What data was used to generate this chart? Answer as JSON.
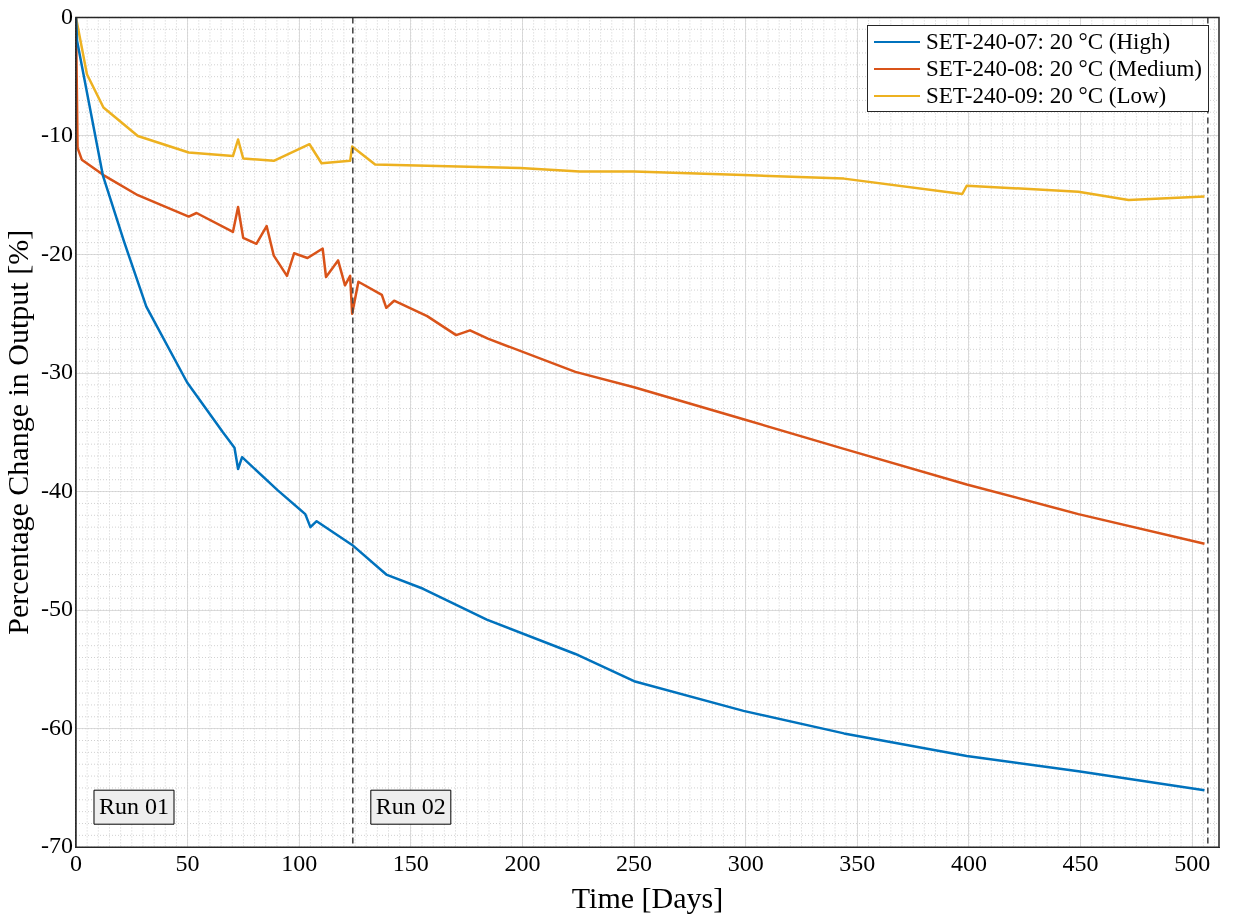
{
  "chart_data": {
    "type": "line",
    "xlabel": "Time [Days]",
    "ylabel": "Percentage Change in Output [%]",
    "xlim": [
      0,
      512
    ],
    "ylim": [
      -70,
      0
    ],
    "xticks": [
      0,
      50,
      100,
      150,
      200,
      250,
      300,
      350,
      400,
      450,
      500
    ],
    "yticks": [
      -70,
      -60,
      -50,
      -40,
      -30,
      -20,
      -10,
      0
    ],
    "grid": true,
    "legend": "top right",
    "marker": "none",
    "line_style": "solid",
    "series": [
      {
        "name": "SET-240-07: 20 °C (High)",
        "color": "#0072bd",
        "x": [
          0,
          0.5,
          12,
          21.5,
          31.5,
          49.8,
          65.8,
          71,
          72.6,
          74.4,
          90.4,
          102.7,
          105,
          107.8,
          123.7,
          139,
          155.5,
          184,
          223.7,
          250,
          299,
          344,
          399,
          449,
          505.5
        ],
        "values": [
          0,
          -2,
          -13.3,
          -18.9,
          -24.4,
          -30.8,
          -35,
          -36.3,
          -38.1,
          -37.1,
          -39.9,
          -41.9,
          -43,
          -42.5,
          -44.5,
          -47,
          -48.2,
          -50.8,
          -53.7,
          -56,
          -58.5,
          -60.4,
          -62.3,
          -63.6,
          -65.2
        ]
      },
      {
        "name": "SET-240-08: 20 °C (Medium)",
        "color": "#d95319",
        "x": [
          0,
          0.7,
          2.6,
          12.3,
          27.7,
          50.5,
          54,
          70.3,
          72.6,
          74.9,
          80.8,
          85.4,
          88.6,
          94.5,
          97.7,
          103.7,
          110.5,
          112,
          117.4,
          120.5,
          122.8,
          123.7,
          126.5,
          137,
          139,
          142.5,
          157.3,
          170.3,
          176.5,
          184.5,
          223.7,
          250,
          299,
          344,
          399,
          449,
          505.5
        ],
        "values": [
          0,
          -11,
          -12,
          -13.3,
          -15,
          -16.8,
          -16.5,
          -18.1,
          -16,
          -18.6,
          -19.1,
          -17.6,
          -20.1,
          -21.8,
          -19.9,
          -20.3,
          -19.5,
          -21.9,
          -20.5,
          -22.6,
          -21.8,
          -25,
          -22.3,
          -23.4,
          -24.5,
          -23.9,
          -25.2,
          -26.8,
          -26.4,
          -27.1,
          -29.9,
          -31.2,
          -33.9,
          -36.4,
          -39.4,
          -41.9,
          -44.4
        ]
      },
      {
        "name": "SET-240-09: 20 °C (Low)",
        "color": "#edb120",
        "x": [
          0,
          4.9,
          12.3,
          27.7,
          50.5,
          70.3,
          72.6,
          74.9,
          88.6,
          104.6,
          110,
          122.8,
          123.7,
          134,
          199,
          225.6,
          250,
          299,
          344,
          397,
          399,
          449,
          471.5,
          505.5
        ],
        "values": [
          0,
          -4.8,
          -7.6,
          -10,
          -11.4,
          -11.7,
          -10.3,
          -11.9,
          -12.1,
          -10.7,
          -12.3,
          -12.1,
          -10.9,
          -12.4,
          -12.7,
          -13,
          -13,
          -13.3,
          -13.6,
          -14.9,
          -14.2,
          -14.7,
          -15.4,
          -15.1
        ]
      }
    ],
    "ref_lines": [
      {
        "axis": "x",
        "value": 124,
        "color": "#404040",
        "line_style": "dashed"
      },
      {
        "axis": "x",
        "value": 507,
        "color": "#404040",
        "line_style": "dashed"
      }
    ],
    "annotations": [
      "Run 01",
      "Run 02"
    ]
  }
}
